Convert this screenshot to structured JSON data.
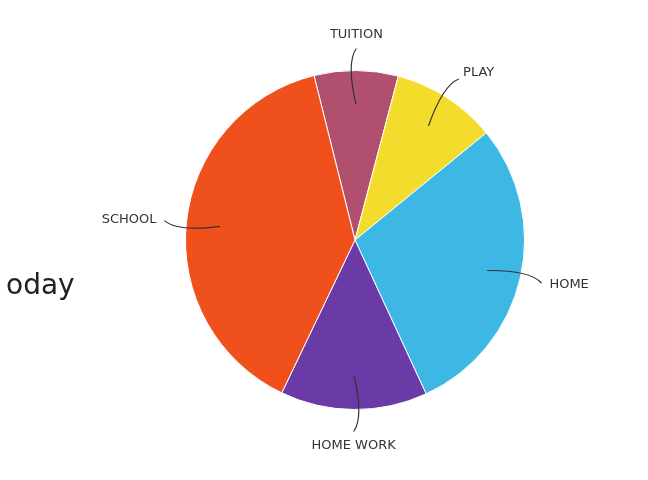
{
  "chart_data": {
    "type": "pie",
    "categories": [
      "TUITION",
      "PLAY",
      "HOME",
      "HOME WORK",
      "SCHOOL"
    ],
    "values": [
      8,
      10,
      29,
      14,
      39
    ],
    "colors": [
      "#b0506e",
      "#f4dc2c",
      "#3db7e4",
      "#6a3aa6",
      "#f0501c"
    ],
    "annotations": [
      "oday"
    ]
  }
}
